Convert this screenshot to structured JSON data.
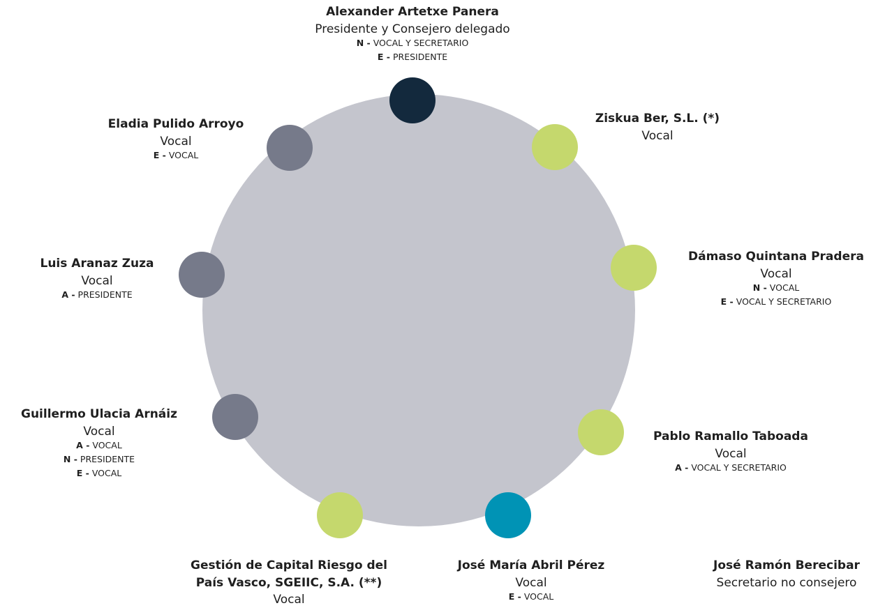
{
  "nodes": [
    {
      "name": [
        "Alexander Artetxe Panera"
      ],
      "role": "Presidente y Consejero delegado",
      "committees": [
        {
          "code": "N -",
          "text": "VOCAL Y SECRETARIO"
        },
        {
          "code": "E -",
          "text": "PRESIDENTE"
        }
      ]
    },
    {
      "name": [
        "Ziskua Ber, S.L. (*)"
      ],
      "role": "Vocal",
      "committees": []
    },
    {
      "name": [
        "Dámaso Quintana Pradera"
      ],
      "role": "Vocal",
      "committees": [
        {
          "code": "N -",
          "text": "VOCAL"
        },
        {
          "code": "E -",
          "text": "VOCAL Y SECRETARIO"
        }
      ]
    },
    {
      "name": [
        "Pablo Ramallo Taboada"
      ],
      "role": "Vocal",
      "committees": [
        {
          "code": "A -",
          "text": "VOCAL Y SECRETARIO"
        }
      ]
    },
    {
      "name": [
        "José María Abril Pérez"
      ],
      "role": "Vocal",
      "committees": [
        {
          "code": "E -",
          "text": "VOCAL"
        }
      ]
    },
    {
      "name": [
        "Gestión de Capital Riesgo del",
        "País Vasco, SGEIIC, S.A. (**)"
      ],
      "role": "Vocal",
      "committees": []
    },
    {
      "name": [
        "Guillermo Ulacia Arnáiz"
      ],
      "role": "Vocal",
      "committees": [
        {
          "code": "A -",
          "text": "VOCAL"
        },
        {
          "code": "N -",
          "text": "PRESIDENTE"
        },
        {
          "code": "E -",
          "text": "VOCAL"
        }
      ]
    },
    {
      "name": [
        "Luis Aranaz Zuza"
      ],
      "role": "Vocal",
      "committees": [
        {
          "code": "A -",
          "text": "PRESIDENTE"
        }
      ]
    },
    {
      "name": [
        "Eladia Pulido Arroyo"
      ],
      "role": "Vocal",
      "committees": [
        {
          "code": "E -",
          "text": "VOCAL"
        }
      ]
    },
    {
      "name": [
        "José Ramón Berecibar"
      ],
      "role": "Secretario no consejero",
      "committees": []
    }
  ]
}
